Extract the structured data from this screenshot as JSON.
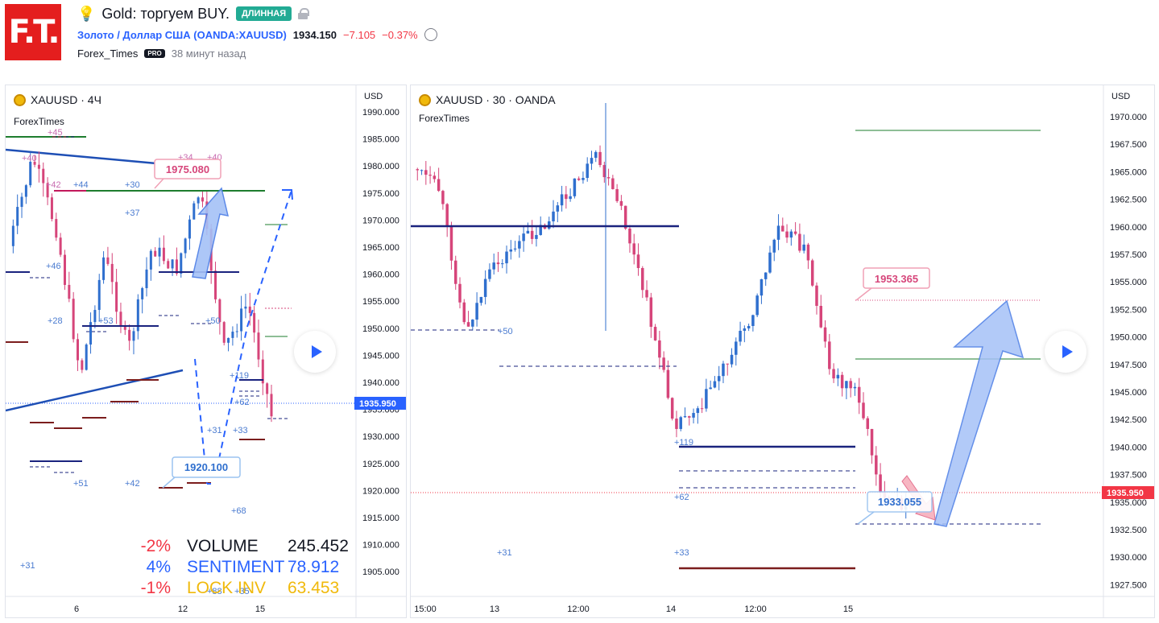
{
  "header": {
    "logo_text": "F.T.",
    "idea_title": "Gold: торгуем BUY.",
    "badge": "ДЛИННАЯ",
    "symbol_name": "Золото / Доллар США",
    "symbol_ticker": "(OANDA:XAUUSD)",
    "price": "1934.150",
    "change": "−7.105",
    "change_pct": "−0.37%",
    "author": "Forex_Times",
    "author_badge": "PRO",
    "time_ago": "38 минут назад",
    "icons": [
      "lightbulb-icon",
      "lock-icon",
      "alarm-clock-icon"
    ]
  },
  "chart_left": {
    "label": "XAUUSD · 4Ч",
    "sublabel": "ForexTimes",
    "currency": "USD",
    "price_ticks": [
      "1990.000",
      "1985.000",
      "1980.000",
      "1975.000",
      "1970.000",
      "1965.000",
      "1960.000",
      "1955.000",
      "1950.000",
      "1945.000",
      "1940.000",
      "1935.000",
      "1930.000",
      "1925.000",
      "1920.000",
      "1915.000",
      "1910.000",
      "1905.000"
    ],
    "current_price": "1935.950",
    "time_ticks": [
      "6",
      "12",
      "15"
    ],
    "callouts": [
      "1975.080",
      "1920.100"
    ],
    "level_labels": [
      "+45",
      "+40",
      "+42",
      "+44",
      "+30",
      "+34",
      "+40",
      "+37",
      "+46",
      "+28",
      "+53",
      "+50",
      "+119",
      "+62",
      "+31",
      "+33",
      "+51",
      "+42",
      "+68",
      "+31",
      "+88",
      "+35"
    ],
    "stats": [
      {
        "pct": "-2%",
        "name": "VOLUME",
        "value": "245.452",
        "color": "#f23645",
        "name_color": "#131722"
      },
      {
        "pct": "4%",
        "name": "SENTIMENT",
        "value": "78.912",
        "color": "#2962ff",
        "name_color": "#2962ff"
      },
      {
        "pct": "-1%",
        "name": "LOCK INV",
        "value": "63.453",
        "color": "#f23645",
        "name_color": "#f0b90b"
      }
    ]
  },
  "chart_right": {
    "label": "XAUUSD · 30 · OANDA",
    "sublabel": "ForexTimes",
    "currency": "USD",
    "price_ticks": [
      "1970.000",
      "1967.500",
      "1965.000",
      "1962.500",
      "1960.000",
      "1957.500",
      "1955.000",
      "1952.500",
      "1950.000",
      "1947.500",
      "1945.000",
      "1942.500",
      "1940.000",
      "1937.500",
      "1935.000",
      "1932.500",
      "1930.000",
      "1927.500"
    ],
    "current_price": "1935.950",
    "time_ticks": [
      "15:00",
      "13",
      "12:00",
      "14",
      "12:00",
      "15"
    ],
    "callouts": [
      "1953.365",
      "1933.055"
    ],
    "level_labels": [
      "+50",
      "+119",
      "+62",
      "+31",
      "+33"
    ]
  }
}
